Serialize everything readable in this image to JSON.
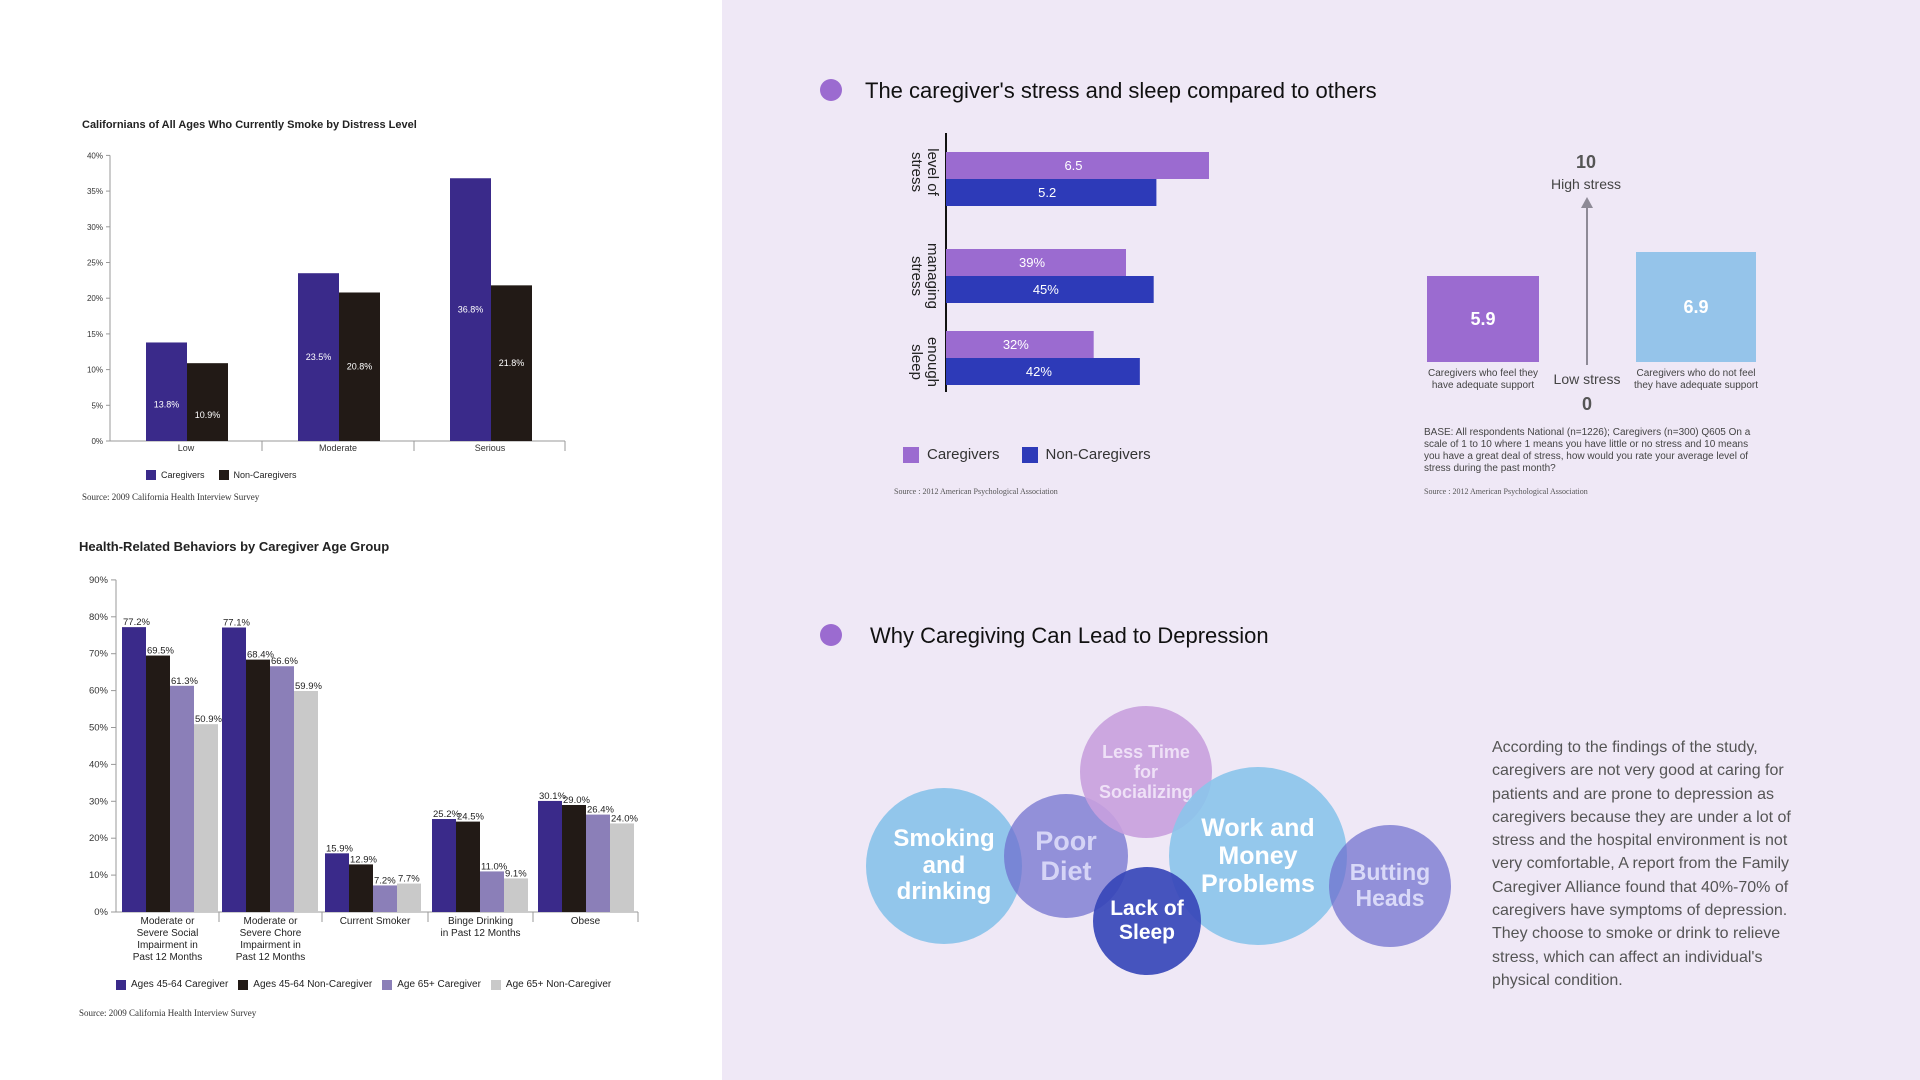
{
  "colors": {
    "chart1_caregivers": "#3a2a8a",
    "chart1_noncaregivers": "#221a16",
    "chart2_series": [
      "#3a2a8a",
      "#221a16",
      "#8b7fb8",
      "#c9c9c9"
    ],
    "caregiver_purple": "#9b6bd0",
    "noncaregiver_blue": "#2d3ab8",
    "box_purple": "#9b6bd0",
    "box_light_blue": "#95c4ea",
    "right_background": "#efe8f6"
  },
  "chart_data": [
    {
      "type": "bar",
      "title": "Californians of All Ages Who Currently Smoke by Distress Level",
      "categories": [
        "Low",
        "Moderate",
        "Serious"
      ],
      "series": [
        {
          "name": "Caregivers",
          "values": [
            13.8,
            23.5,
            36.8
          ]
        },
        {
          "name": "Non-Caregivers",
          "values": [
            10.9,
            20.8,
            21.8
          ]
        }
      ],
      "data_labels": [
        [
          "13.8%",
          "23.5%",
          "36.8%"
        ],
        [
          "10.9%",
          "20.8%",
          "21.8%"
        ]
      ],
      "ylim": [
        0,
        40
      ],
      "yticks": [
        "0%",
        "5%",
        "10%",
        "15%",
        "20%",
        "25%",
        "30%",
        "35%",
        "40%"
      ],
      "legend": "bottom",
      "source": "Source:   2009 California Health Interview Survey"
    },
    {
      "type": "bar",
      "title": "Health-Related Behaviors by Caregiver Age Group",
      "categories": [
        [
          "Moderate or",
          "Severe Social",
          "Impairment in",
          "Past 12 Months"
        ],
        [
          "Moderate or",
          "Severe Chore",
          "Impairment in",
          "Past 12 Months"
        ],
        [
          "Current Smoker"
        ],
        [
          "Binge Drinking",
          "in Past 12 Months"
        ],
        [
          "Obese"
        ]
      ],
      "series": [
        {
          "name": "Ages 45-64 Caregiver",
          "values": [
            77.2,
            77.1,
            15.9,
            25.2,
            30.1
          ]
        },
        {
          "name": "Ages 45-64 Non-Caregiver",
          "values": [
            69.5,
            68.4,
            12.9,
            24.5,
            29.0
          ]
        },
        {
          "name": "Age 65+ Caregiver",
          "values": [
            61.3,
            66.6,
            7.2,
            11.0,
            26.4
          ]
        },
        {
          "name": "Age 65+ Non-Caregiver",
          "values": [
            50.9,
            59.9,
            7.7,
            9.1,
            24.0
          ]
        }
      ],
      "data_labels": [
        [
          "77.2%",
          "77.1%",
          "15.9%",
          "25.2%",
          "30.1%"
        ],
        [
          "69.5%",
          "68.4%",
          "12.9%",
          "24.5%",
          "29.0%"
        ],
        [
          "61.3%",
          "66.6%",
          "7.2%",
          "11.0%",
          "26.4%"
        ],
        [
          "50.9%",
          "59.9%",
          "7.7%",
          "9.1%",
          "24.0%"
        ]
      ],
      "ylim": [
        0,
        90
      ],
      "yticks": [
        "0%",
        "10%",
        "20%",
        "30%",
        "40%",
        "50%",
        "60%",
        "70%",
        "80%",
        "90%"
      ],
      "legend": "bottom",
      "source": "Source:   2009 California Health Interview Survey"
    },
    {
      "type": "bar",
      "orientation": "horizontal",
      "categories": [
        [
          "level of",
          "stress"
        ],
        [
          "managing",
          "stress"
        ],
        [
          "enough",
          "sleep"
        ]
      ],
      "series": [
        {
          "name": "Caregivers",
          "values": [
            6.5,
            39,
            32
          ],
          "labels": [
            "6.5",
            "39%",
            "32%"
          ]
        },
        {
          "name": "Non-Caregivers",
          "values": [
            5.2,
            45,
            42
          ],
          "labels": [
            "5.2",
            "45%",
            "42%"
          ]
        }
      ],
      "legend": "bottom-left",
      "source": "Source : 2012 American Psychological Association"
    }
  ],
  "section1": {
    "title": "The caregiver's stress and sleep compared to others"
  },
  "stress_scale": {
    "top_value": "10",
    "top_label": "High stress",
    "bottom_value": "0",
    "bottom_label": "Low stress",
    "left_value": "5.9",
    "left_caption": [
      "Caregivers who feel they",
      "have adequate support"
    ],
    "right_value": "6.9",
    "right_caption": [
      "Caregivers who do not feel",
      "they have adequate support"
    ],
    "base_note": "BASE: All respondents National (n=1226); Caregivers (n=300) Q605 On a scale of 1 to 10 where 1 means you have little or no stress and 10 means you have a great deal of stress, how would you rate your average level of stress during the past month?",
    "source": "Source : 2012 American Psychological Association"
  },
  "section2": {
    "title": "Why Caregiving Can Lead to Depression",
    "bubbles": [
      {
        "name": "smoking",
        "lines": [
          "Smoking",
          "and",
          "drinking"
        ]
      },
      {
        "name": "poor-diet",
        "lines": [
          "Poor",
          "Diet"
        ]
      },
      {
        "name": "less-time",
        "lines": [
          "Less Time",
          "for",
          "Socializing"
        ]
      },
      {
        "name": "lack-sleep",
        "lines": [
          "Lack of",
          "Sleep"
        ]
      },
      {
        "name": "work-money",
        "lines": [
          "Work and",
          "Money",
          "Problems"
        ]
      },
      {
        "name": "butting",
        "lines": [
          "Butting",
          "Heads"
        ]
      }
    ],
    "paragraph": "According to the findings of the study, caregivers are not very good at caring for patients and are prone to depression as caregivers because they are under a lot of stress and the hospital environment is not very comfortable, A report from the Family Caregiver Alliance found that 40%-70% of caregivers have symptoms of depression. They choose to smoke or drink to relieve stress, which can affect an individual's physical condition."
  }
}
